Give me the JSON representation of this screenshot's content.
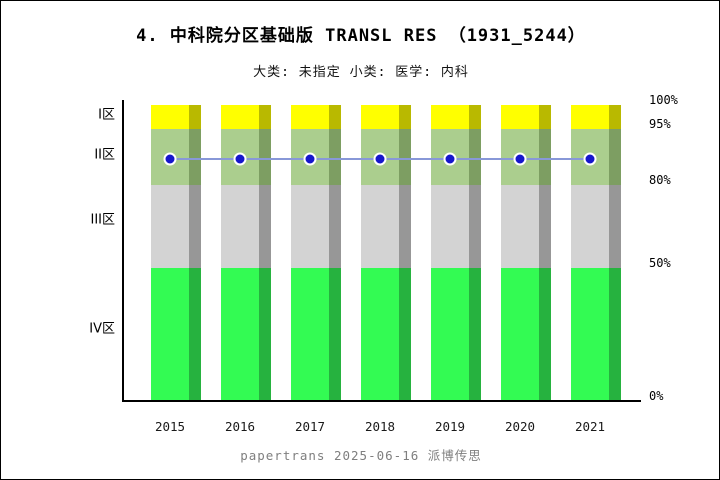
{
  "header": {
    "title": "4. 中科院分区基础版 TRANSL RES （1931_5244）",
    "subtitle": "大类: 未指定 小类: 医学: 内科"
  },
  "footer": {
    "credit": "papertrans 2025-06-16 派博传思"
  },
  "chart_data": {
    "type": "bar",
    "title": "4. 中科院分区基础版 TRANSL RES （1931_5244）",
    "subtitle": "大类: 未指定 小类: 医学: 内科",
    "categories": [
      "2015",
      "2016",
      "2017",
      "2018",
      "2019",
      "2020",
      "2021"
    ],
    "stacked_zones": [
      {
        "label": "I区",
        "range_pct": [
          95,
          100
        ],
        "color": "#ffff00",
        "shadow_color": "#b9b900"
      },
      {
        "label": "II区",
        "range_pct": [
          80,
          95
        ],
        "color": "#abce8e",
        "shadow_color": "#7d9e62"
      },
      {
        "label": "III区",
        "range_pct": [
          50,
          80
        ],
        "color": "#d3d3d3",
        "shadow_color": "#979797"
      },
      {
        "label": "IV区",
        "range_pct": [
          0,
          50
        ],
        "color": "#33fb53",
        "shadow_color": "#26b23f"
      }
    ],
    "series": [
      {
        "name": "journal-percentile-line",
        "type": "line",
        "values": [
          87,
          87,
          87,
          87,
          87,
          87,
          87
        ],
        "marker_color": "#1616cc",
        "line_color": "#8898d8"
      }
    ],
    "y_axis": {
      "side": "right",
      "ticks": [
        {
          "label": "100%",
          "pct": 100
        },
        {
          "label": "95%",
          "pct": 95
        },
        {
          "label": "80%",
          "pct": 80
        },
        {
          "label": "50%",
          "pct": 50
        },
        {
          "label": "0%",
          "pct": 0
        }
      ]
    },
    "x_axis": {
      "label": "",
      "ticks": [
        "2015",
        "2016",
        "2017",
        "2018",
        "2019",
        "2020",
        "2021"
      ]
    },
    "legend_position": "none",
    "grid": false
  }
}
